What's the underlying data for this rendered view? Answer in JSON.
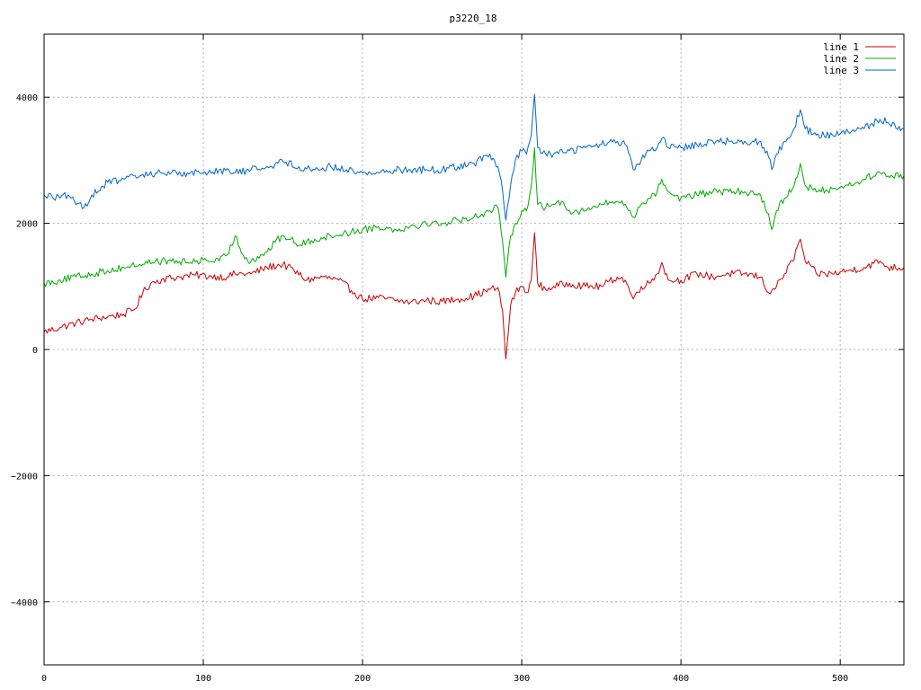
{
  "chart_data": {
    "type": "line",
    "title": "p3220_18",
    "xlabel": "",
    "ylabel": "",
    "xlim": [
      0,
      540
    ],
    "ylim": [
      -5000,
      5000
    ],
    "xticks": [
      0,
      100,
      200,
      300,
      400,
      500
    ],
    "xtick_labels": [
      "0",
      "100",
      "200",
      "300",
      "400",
      "500"
    ],
    "yticks": [
      -4000,
      -2000,
      0,
      2000,
      4000
    ],
    "ytick_labels": [
      "−4000",
      "−2000",
      "0",
      "2000",
      "4000"
    ],
    "grid": true,
    "legend": "top-right",
    "series": [
      {
        "name": "line 1",
        "color": "#cc0000",
        "points": [
          [
            0,
            280
          ],
          [
            10,
            350
          ],
          [
            20,
            420
          ],
          [
            30,
            480
          ],
          [
            40,
            520
          ],
          [
            50,
            560
          ],
          [
            57,
            640
          ],
          [
            62,
            900
          ],
          [
            67,
            1050
          ],
          [
            75,
            1120
          ],
          [
            85,
            1150
          ],
          [
            95,
            1180
          ],
          [
            105,
            1160
          ],
          [
            115,
            1150
          ],
          [
            120,
            1200
          ],
          [
            130,
            1200
          ],
          [
            140,
            1300
          ],
          [
            150,
            1350
          ],
          [
            157,
            1250
          ],
          [
            165,
            1100
          ],
          [
            175,
            1150
          ],
          [
            185,
            1100
          ],
          [
            195,
            900
          ],
          [
            200,
            800
          ],
          [
            210,
            820
          ],
          [
            220,
            780
          ],
          [
            230,
            750
          ],
          [
            240,
            780
          ],
          [
            250,
            760
          ],
          [
            260,
            800
          ],
          [
            270,
            850
          ],
          [
            280,
            950
          ],
          [
            285,
            980
          ],
          [
            288,
            600
          ],
          [
            290,
            -150
          ],
          [
            293,
            700
          ],
          [
            296,
            900
          ],
          [
            300,
            1000
          ],
          [
            303,
            900
          ],
          [
            306,
            1100
          ],
          [
            308,
            1850
          ],
          [
            310,
            1050
          ],
          [
            315,
            950
          ],
          [
            320,
            1000
          ],
          [
            330,
            1050
          ],
          [
            340,
            1000
          ],
          [
            350,
            1000
          ],
          [
            360,
            1150
          ],
          [
            365,
            1100
          ],
          [
            370,
            800
          ],
          [
            375,
            1000
          ],
          [
            380,
            1050
          ],
          [
            385,
            1200
          ],
          [
            388,
            1380
          ],
          [
            392,
            1100
          ],
          [
            400,
            1100
          ],
          [
            410,
            1200
          ],
          [
            420,
            1150
          ],
          [
            430,
            1200
          ],
          [
            440,
            1200
          ],
          [
            450,
            1150
          ],
          [
            455,
            900
          ],
          [
            460,
            1000
          ],
          [
            465,
            1200
          ],
          [
            470,
            1400
          ],
          [
            475,
            1750
          ],
          [
            478,
            1400
          ],
          [
            485,
            1200
          ],
          [
            495,
            1200
          ],
          [
            505,
            1250
          ],
          [
            515,
            1300
          ],
          [
            525,
            1400
          ],
          [
            530,
            1300
          ],
          [
            540,
            1300
          ]
        ]
      },
      {
        "name": "line 2",
        "color": "#00aa00",
        "points": [
          [
            0,
            1050
          ],
          [
            10,
            1100
          ],
          [
            20,
            1150
          ],
          [
            30,
            1200
          ],
          [
            40,
            1250
          ],
          [
            50,
            1300
          ],
          [
            60,
            1350
          ],
          [
            70,
            1400
          ],
          [
            80,
            1400
          ],
          [
            90,
            1380
          ],
          [
            100,
            1420
          ],
          [
            110,
            1400
          ],
          [
            115,
            1500
          ],
          [
            120,
            1800
          ],
          [
            125,
            1500
          ],
          [
            130,
            1400
          ],
          [
            140,
            1550
          ],
          [
            145,
            1700
          ],
          [
            150,
            1800
          ],
          [
            155,
            1750
          ],
          [
            160,
            1650
          ],
          [
            170,
            1750
          ],
          [
            180,
            1800
          ],
          [
            190,
            1850
          ],
          [
            200,
            1900
          ],
          [
            210,
            1950
          ],
          [
            220,
            1900
          ],
          [
            230,
            1950
          ],
          [
            240,
            2000
          ],
          [
            250,
            2000
          ],
          [
            260,
            2050
          ],
          [
            270,
            2100
          ],
          [
            280,
            2200
          ],
          [
            285,
            2250
          ],
          [
            288,
            1700
          ],
          [
            290,
            1150
          ],
          [
            293,
            1800
          ],
          [
            296,
            2000
          ],
          [
            300,
            2200
          ],
          [
            303,
            2200
          ],
          [
            306,
            2600
          ],
          [
            308,
            3200
          ],
          [
            310,
            2300
          ],
          [
            315,
            2250
          ],
          [
            320,
            2300
          ],
          [
            325,
            2350
          ],
          [
            330,
            2200
          ],
          [
            340,
            2200
          ],
          [
            350,
            2300
          ],
          [
            360,
            2350
          ],
          [
            365,
            2300
          ],
          [
            370,
            2100
          ],
          [
            375,
            2300
          ],
          [
            380,
            2400
          ],
          [
            385,
            2500
          ],
          [
            388,
            2700
          ],
          [
            392,
            2500
          ],
          [
            400,
            2400
          ],
          [
            410,
            2450
          ],
          [
            420,
            2500
          ],
          [
            430,
            2500
          ],
          [
            440,
            2500
          ],
          [
            450,
            2450
          ],
          [
            455,
            2150
          ],
          [
            457,
            1900
          ],
          [
            460,
            2200
          ],
          [
            465,
            2400
          ],
          [
            470,
            2550
          ],
          [
            475,
            2950
          ],
          [
            478,
            2600
          ],
          [
            485,
            2500
          ],
          [
            495,
            2550
          ],
          [
            505,
            2600
          ],
          [
            515,
            2700
          ],
          [
            525,
            2800
          ],
          [
            530,
            2750
          ],
          [
            540,
            2750
          ]
        ]
      },
      {
        "name": "line 3",
        "color": "#0066cc",
        "points": [
          [
            0,
            2450
          ],
          [
            10,
            2400
          ],
          [
            15,
            2450
          ],
          [
            20,
            2300
          ],
          [
            25,
            2250
          ],
          [
            30,
            2450
          ],
          [
            40,
            2650
          ],
          [
            50,
            2700
          ],
          [
            60,
            2750
          ],
          [
            70,
            2800
          ],
          [
            80,
            2800
          ],
          [
            90,
            2800
          ],
          [
            100,
            2800
          ],
          [
            110,
            2850
          ],
          [
            120,
            2800
          ],
          [
            130,
            2850
          ],
          [
            140,
            2900
          ],
          [
            150,
            2980
          ],
          [
            160,
            2900
          ],
          [
            170,
            2850
          ],
          [
            180,
            2900
          ],
          [
            190,
            2850
          ],
          [
            200,
            2800
          ],
          [
            210,
            2800
          ],
          [
            220,
            2850
          ],
          [
            230,
            2850
          ],
          [
            240,
            2850
          ],
          [
            250,
            2850
          ],
          [
            260,
            2900
          ],
          [
            270,
            2950
          ],
          [
            280,
            3100
          ],
          [
            285,
            2900
          ],
          [
            288,
            2500
          ],
          [
            290,
            2050
          ],
          [
            293,
            2600
          ],
          [
            296,
            3000
          ],
          [
            300,
            3150
          ],
          [
            303,
            3100
          ],
          [
            306,
            3400
          ],
          [
            308,
            4050
          ],
          [
            310,
            3200
          ],
          [
            315,
            3100
          ],
          [
            320,
            3100
          ],
          [
            330,
            3150
          ],
          [
            340,
            3200
          ],
          [
            350,
            3250
          ],
          [
            360,
            3300
          ],
          [
            365,
            3250
          ],
          [
            370,
            2850
          ],
          [
            375,
            3000
          ],
          [
            380,
            3150
          ],
          [
            385,
            3200
          ],
          [
            388,
            3350
          ],
          [
            392,
            3200
          ],
          [
            400,
            3200
          ],
          [
            410,
            3250
          ],
          [
            420,
            3300
          ],
          [
            430,
            3300
          ],
          [
            440,
            3300
          ],
          [
            450,
            3300
          ],
          [
            455,
            3050
          ],
          [
            457,
            2850
          ],
          [
            460,
            3100
          ],
          [
            465,
            3300
          ],
          [
            470,
            3450
          ],
          [
            475,
            3800
          ],
          [
            478,
            3500
          ],
          [
            485,
            3400
          ],
          [
            495,
            3400
          ],
          [
            505,
            3450
          ],
          [
            515,
            3500
          ],
          [
            525,
            3650
          ],
          [
            530,
            3600
          ],
          [
            540,
            3500
          ]
        ]
      }
    ]
  }
}
